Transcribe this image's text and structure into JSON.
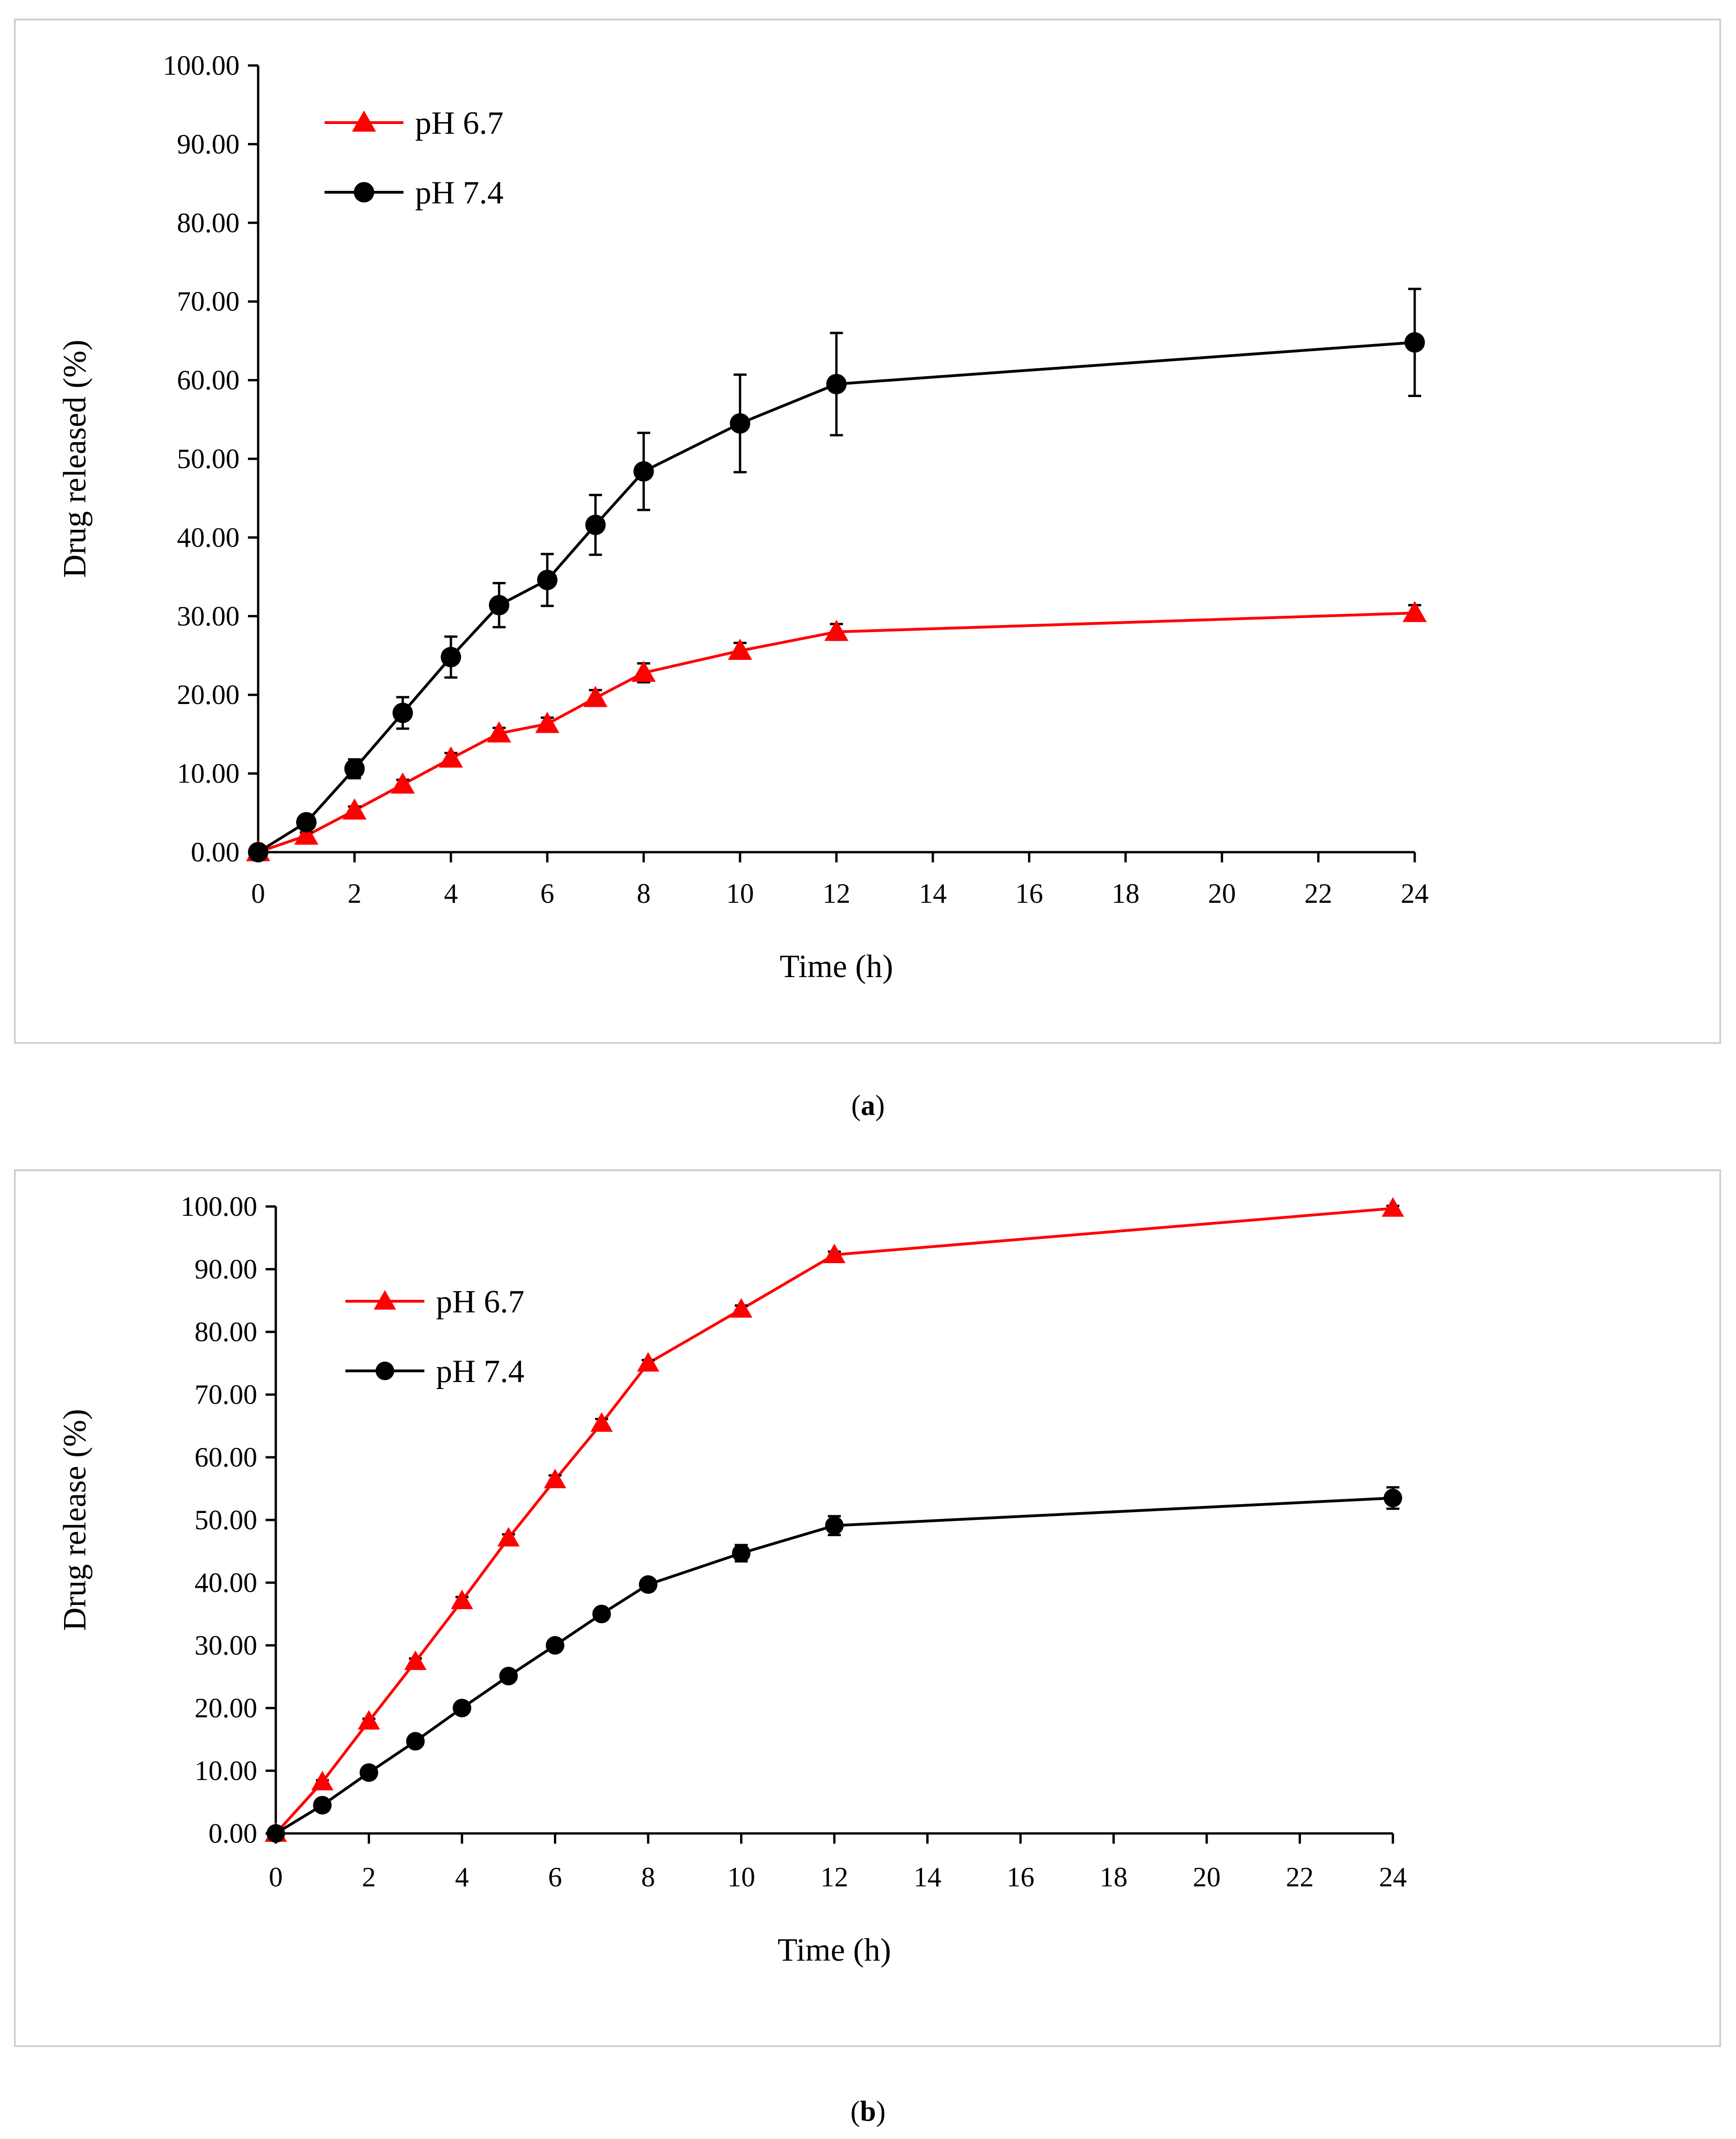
{
  "colors": {
    "ph67": "#ff0000",
    "ph74": "#000000",
    "axis": "#000000",
    "frame": "#d0d0d0"
  },
  "chart_data": [
    {
      "panel": "a",
      "type": "line",
      "caption_letter": "a",
      "xlabel": "Time (h)",
      "ylabel": "Drug released (%)",
      "x_ticks": [
        "0",
        "2",
        "4",
        "6",
        "8",
        "10",
        "12",
        "14",
        "16",
        "18",
        "20",
        "22",
        "24"
      ],
      "y_ticks": [
        "0.00",
        "10.00",
        "20.00",
        "30.00",
        "40.00",
        "50.00",
        "60.00",
        "70.00",
        "80.00",
        "90.00",
        "100.00"
      ],
      "ylim": [
        0,
        100
      ],
      "categories": [
        "0",
        "1",
        "2",
        "3",
        "4",
        "5",
        "6",
        "7",
        "8",
        "10",
        "12",
        "24"
      ],
      "series": [
        {
          "name": "pH 6.7",
          "marker": "triangle",
          "color": "#ff0000",
          "values": [
            0,
            2.1,
            5.3,
            8.6,
            11.9,
            15.1,
            16.3,
            19.6,
            22.8,
            25.6,
            28.0,
            30.4
          ],
          "errors": [
            0,
            0.4,
            0.5,
            0.6,
            0.7,
            0.7,
            0.8,
            1.0,
            1.2,
            1.0,
            1.0,
            1.0
          ]
        },
        {
          "name": "pH 7.4",
          "marker": "circle",
          "color": "#000000",
          "values": [
            0,
            3.8,
            10.6,
            17.7,
            24.8,
            31.4,
            34.6,
            41.6,
            48.4,
            54.5,
            59.5,
            64.8
          ],
          "errors": [
            0,
            0.6,
            1.2,
            2.0,
            2.6,
            2.8,
            3.3,
            3.8,
            4.9,
            6.2,
            6.5,
            6.8
          ]
        }
      ]
    },
    {
      "panel": "b",
      "type": "line",
      "caption_letter": "b",
      "xlabel": "Time (h)",
      "ylabel": "Drug release (%)",
      "x_ticks": [
        "0",
        "2",
        "4",
        "6",
        "8",
        "10",
        "12",
        "14",
        "16",
        "18",
        "20",
        "22",
        "24"
      ],
      "y_ticks": [
        "0.00",
        "10.00",
        "20.00",
        "30.00",
        "40.00",
        "50.00",
        "60.00",
        "70.00",
        "80.00",
        "90.00",
        "100.00"
      ],
      "ylim": [
        0,
        100
      ],
      "categories": [
        "0",
        "1",
        "2",
        "3",
        "4",
        "5",
        "6",
        "7",
        "8",
        "10",
        "12",
        "24"
      ],
      "series": [
        {
          "name": "pH 6.7",
          "marker": "triangle",
          "color": "#ff0000",
          "values": [
            0,
            8.2,
            17.9,
            27.4,
            37.1,
            47.1,
            56.4,
            65.4,
            75.0,
            83.6,
            92.3,
            99.7
          ],
          "errors": [
            0,
            0.3,
            0.4,
            0.5,
            0.6,
            0.6,
            0.7,
            0.7,
            0.5,
            0.6,
            0.5,
            0.4
          ]
        },
        {
          "name": "pH 7.4",
          "marker": "circle",
          "color": "#000000",
          "values": [
            0,
            4.5,
            9.7,
            14.7,
            20.0,
            25.1,
            30.0,
            35.0,
            39.7,
            44.7,
            49.1,
            53.5
          ],
          "errors": [
            0,
            0.3,
            0.4,
            0.5,
            0.6,
            0.6,
            0.7,
            0.7,
            0.8,
            1.3,
            1.5,
            1.7
          ]
        }
      ]
    }
  ]
}
